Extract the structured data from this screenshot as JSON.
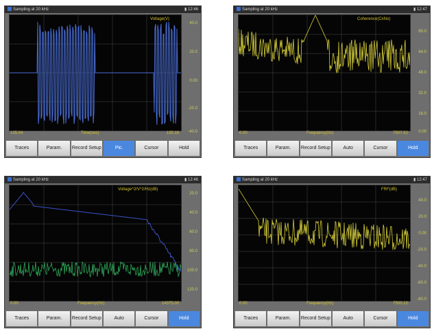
{
  "panels": [
    {
      "status_left": "Sampling at 20 kHz",
      "status_right": "12:46",
      "top_label": "Voltage(V)",
      "y_ticks": [
        "40.0",
        "20.0",
        "0.00",
        "-20.0",
        "-40.0"
      ],
      "x_left": "135.04",
      "x_mid": "Time(sec)",
      "x_right": "135.16",
      "buttons": [
        "Traces",
        "Param.",
        "Record Setup",
        "Pic.",
        "Cursor",
        "Hold"
      ],
      "active_button": 3,
      "trace_color": "#4a6fd8"
    },
    {
      "status_left": "Sampling at 20 kHz",
      "status_right": "12:47",
      "top_label": "Coherence(CxNo)",
      "y_ticks": [
        "80.0",
        "64.0",
        "48.0",
        "32.0",
        "16.0",
        "0.00"
      ],
      "x_left": "0.00",
      "x_mid": "Frequency(Hz)",
      "x_right": "7507.52",
      "buttons": [
        "Traces",
        "Param.",
        "Record Setup",
        "Auto",
        "Cursor",
        "Hold"
      ],
      "active_button": 5,
      "trace_color": "#d8d03a"
    },
    {
      "status_left": "Sampling at 20 kHz",
      "status_right": "12:46",
      "top_label": "Voltage^2/V^2/Hz(dB)",
      "y_ticks": [
        "20.0",
        "40.0",
        "60.0",
        "80.0",
        "100.0",
        "120.0"
      ],
      "x_left": "0.00",
      "x_mid": "Frequency(Hz)",
      "x_right": "14375.00",
      "buttons": [
        "Traces",
        "Param.",
        "Record Setup",
        "Auto",
        "Cursor",
        "Hold"
      ],
      "active_button": 5,
      "trace_color": "#3a52c8",
      "trace2_color": "#2fa85a"
    },
    {
      "status_left": "Sampling at 20 kHz",
      "status_right": "12:47",
      "top_label": "FRF(dB)",
      "y_ticks": [
        "40.0",
        "20.0",
        "0.00",
        "-20.0",
        "-40.0",
        "-60.0",
        "-80.0"
      ],
      "x_left": "0.00",
      "x_mid": "Frequency(Hz)",
      "x_right": "7500.12",
      "buttons": [
        "Traces",
        "Param.",
        "Record Setup",
        "Auto",
        "Cursor",
        "Hold"
      ],
      "active_button": 5,
      "trace_color": "#d8d03a"
    }
  ]
}
